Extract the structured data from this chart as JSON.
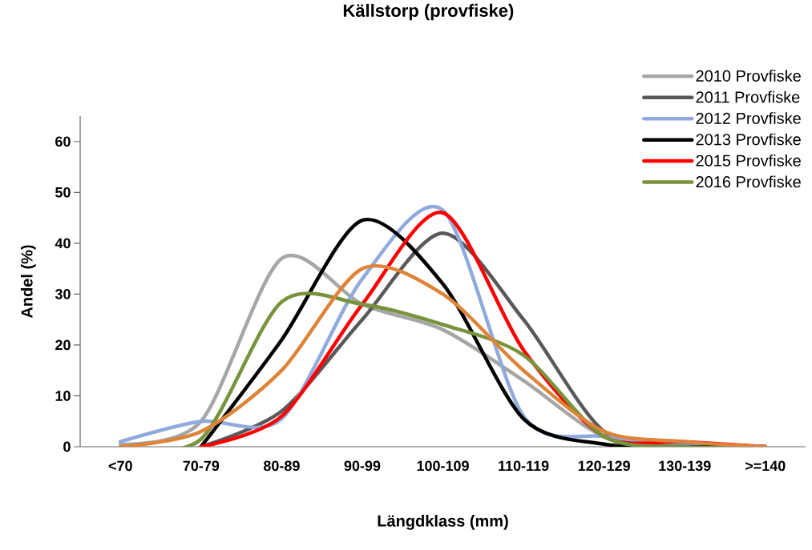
{
  "chart_data": {
    "type": "line",
    "title": "Källstorp  (provfiske)",
    "xlabel": "Längdklass (mm)",
    "ylabel": "Andel  (%)",
    "categories": [
      "<70",
      "70-79",
      "80-89",
      "90-99",
      "100-109",
      "110-119",
      "120-129",
      "130-139",
      ">=140"
    ],
    "ylim": [
      0,
      65
    ],
    "yticks": [
      0,
      10,
      20,
      30,
      40,
      50,
      60
    ],
    "legend": "top right",
    "marker": "none",
    "line_style": "solid",
    "series": [
      {
        "name": "2010 Provfiske",
        "color": "#a6a6a6",
        "values": [
          0.5,
          5,
          37,
          28,
          23,
          13,
          2,
          0.5,
          0
        ]
      },
      {
        "name": "2011 Provfiske",
        "color": "#595959",
        "values": [
          null,
          0,
          7,
          25,
          42,
          25,
          3,
          0.5,
          0
        ]
      },
      {
        "name": "2012 Provfiske",
        "color": "#8faadc",
        "values": [
          1,
          5,
          5.5,
          33,
          46.5,
          6,
          2,
          0.5,
          0
        ]
      },
      {
        "name": "2013 Provfiske",
        "color": "#000000",
        "values": [
          null,
          0,
          21,
          44.5,
          32,
          5.5,
          0.5,
          0,
          0
        ]
      },
      {
        "name": "2015 Provfiske",
        "color": "#ff0000",
        "values": [
          null,
          0,
          6,
          28,
          46,
          19,
          2,
          1,
          0
        ]
      },
      {
        "name": "2016 Provfiske",
        "color": "#77933c",
        "values": [
          0,
          1.5,
          28.5,
          28,
          24,
          18,
          2,
          0,
          0
        ]
      },
      {
        "color": "#dd8438",
        "values": [
          0,
          3,
          15,
          35,
          30,
          15,
          3,
          1,
          0
        ]
      }
    ]
  }
}
